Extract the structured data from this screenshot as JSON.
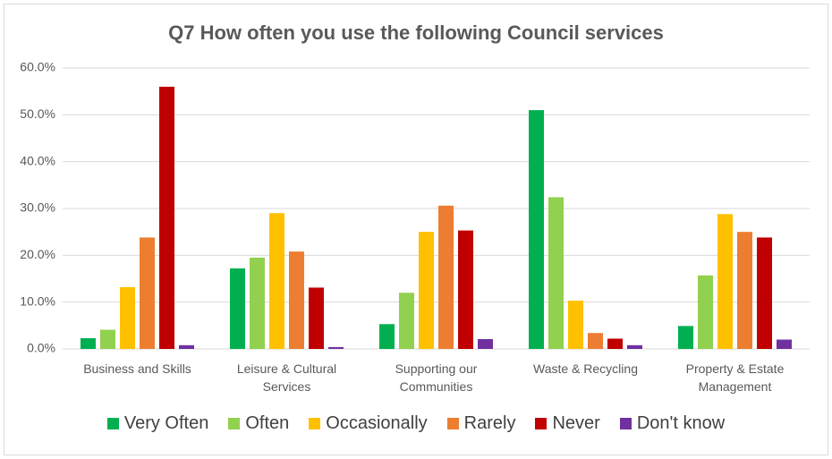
{
  "chart_data": {
    "type": "grouped-bar",
    "title": "Q7 How often you use the following Council services",
    "categories": [
      "Business and Skills",
      "Leisure & Cultural Services",
      "Supporting our Communities",
      "Waste & Recycling",
      "Property & Estate Management"
    ],
    "series": [
      {
        "name": "Very Often",
        "color": "#00b050",
        "values": [
          2.3,
          17.2,
          5.3,
          51,
          4.9
        ]
      },
      {
        "name": "Often",
        "color": "#92d050",
        "values": [
          4.1,
          19.5,
          12,
          32.4,
          15.7
        ]
      },
      {
        "name": "Occasionally",
        "color": "#ffc000",
        "values": [
          13.2,
          29,
          25,
          10.3,
          28.8
        ]
      },
      {
        "name": "Rarely",
        "color": "#ed7d31",
        "values": [
          23.8,
          20.8,
          30.6,
          3.4,
          25
        ]
      },
      {
        "name": "Never",
        "color": "#c00000",
        "values": [
          56,
          13.1,
          25.3,
          2.2,
          23.8
        ]
      },
      {
        "name": "Don't know",
        "color": "#7030a0",
        "values": [
          0.8,
          0.4,
          2.1,
          0.8,
          2
        ]
      }
    ],
    "ylim": [
      0,
      60
    ],
    "yticks": [
      {
        "value": 0,
        "label": "0.0%"
      },
      {
        "value": 10,
        "label": "10.0%"
      },
      {
        "value": 20,
        "label": "20.0%"
      },
      {
        "value": 30,
        "label": "30.0%"
      },
      {
        "value": 40,
        "label": "40.0%"
      },
      {
        "value": 50,
        "label": "50.0%"
      },
      {
        "value": 60,
        "label": "60.0%"
      }
    ],
    "grid": true,
    "legend": "bottom"
  }
}
